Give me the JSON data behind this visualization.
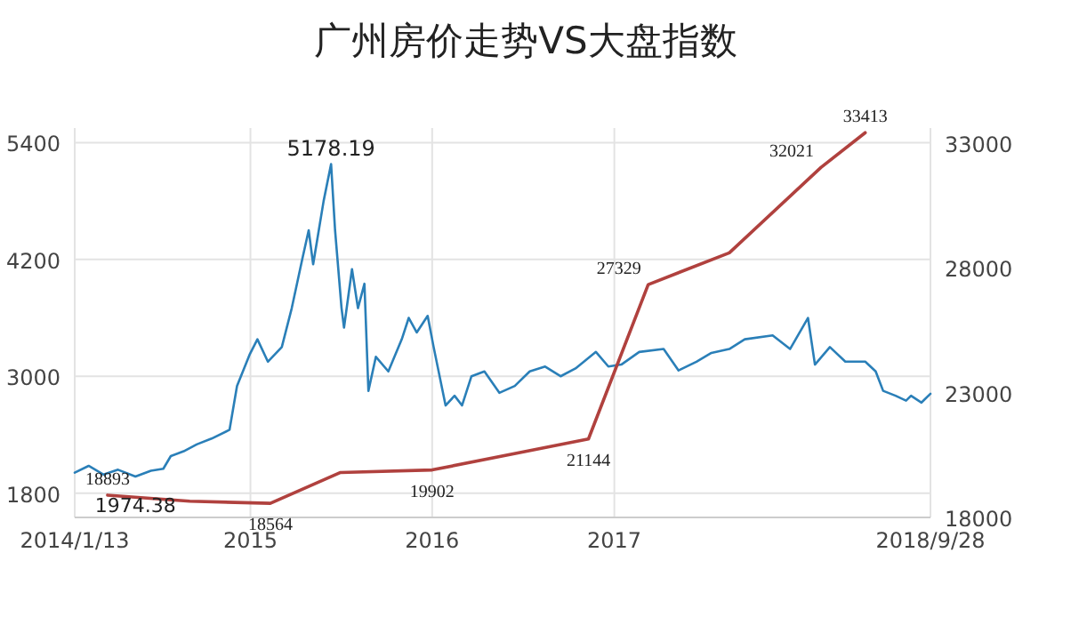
{
  "chart_data": {
    "type": "line",
    "title": "广州房价走势VS大盘指数",
    "xlim": [
      "2014-01-13",
      "2018-09-28"
    ],
    "xticks": [
      {
        "value": "2014-01-13",
        "label": "2014/1/13"
      },
      {
        "value": "2015-01-01",
        "label": "2015"
      },
      {
        "value": "2016-01-01",
        "label": "2016"
      },
      {
        "value": "2017-01-01",
        "label": "2017"
      },
      {
        "value": "2018-09-28",
        "label": "2018/9/28"
      }
    ],
    "ylim": [
      1550,
      5550
    ],
    "yticks": [
      1800,
      3000,
      4200,
      5400
    ],
    "y2lim": [
      18000,
      33600
    ],
    "y2ticks": [
      18000,
      23000,
      28000,
      33000
    ],
    "grid": true,
    "series": [
      {
        "color": "#2a7fb8",
        "x": [
          "2014-01-13",
          "2014-02-10",
          "2014-03-12",
          "2014-04-10",
          "2014-05-15",
          "2014-06-15",
          "2014-07-10",
          "2014-07-25",
          "2014-08-20",
          "2014-09-15",
          "2014-10-15",
          "2014-11-20",
          "2014-12-05",
          "2014-12-31",
          "2015-01-15",
          "2015-02-05",
          "2015-03-05",
          "2015-03-25",
          "2015-04-15",
          "2015-04-28",
          "2015-05-07",
          "2015-05-28",
          "2015-06-12",
          "2015-06-20",
          "2015-07-03",
          "2015-07-08",
          "2015-07-24",
          "2015-08-05",
          "2015-08-18",
          "2015-08-26",
          "2015-09-10",
          "2015-10-05",
          "2015-11-01",
          "2015-11-15",
          "2015-12-01",
          "2015-12-23",
          "2016-01-04",
          "2016-01-28",
          "2016-02-15",
          "2016-03-01",
          "2016-03-20",
          "2016-04-15",
          "2016-05-15",
          "2016-06-15",
          "2016-07-15",
          "2016-08-15",
          "2016-09-15",
          "2016-10-15",
          "2016-11-25",
          "2016-12-20",
          "2017-01-15",
          "2017-02-20",
          "2017-04-10",
          "2017-05-10",
          "2017-06-15",
          "2017-07-15",
          "2017-08-20",
          "2017-09-20",
          "2017-11-15",
          "2017-12-20",
          "2018-01-25",
          "2018-02-08",
          "2018-03-10",
          "2018-04-10",
          "2018-05-20",
          "2018-06-10",
          "2018-06-25",
          "2018-07-20",
          "2018-08-10",
          "2018-08-20",
          "2018-09-10",
          "2018-09-28"
        ],
        "values": [
          2010,
          2080,
          1990,
          2040,
          1970,
          2030,
          2050,
          2180,
          2230,
          2300,
          2360,
          2450,
          2900,
          3230,
          3380,
          3150,
          3300,
          3700,
          4200,
          4500,
          4150,
          4800,
          5180,
          4500,
          3700,
          3500,
          4100,
          3700,
          3950,
          2850,
          3200,
          3050,
          3380,
          3600,
          3450,
          3620,
          3300,
          2700,
          2800,
          2700,
          3000,
          3050,
          2830,
          2900,
          3050,
          3100,
          3000,
          3080,
          3250,
          3100,
          3120,
          3250,
          3280,
          3060,
          3150,
          3240,
          3280,
          3380,
          3420,
          3280,
          3600,
          3120,
          3300,
          3150,
          3150,
          3050,
          2850,
          2800,
          2750,
          2800,
          2730,
          2820
        ]
      },
      {
        "color": "#b0413e",
        "axis": "y2",
        "x": [
          "2014-03-20",
          "2014-09-01",
          "2015-02-10",
          "2015-07-01",
          "2016-01-01",
          "2016-11-10",
          "2017-03-10",
          "2017-08-20",
          "2018-02-20",
          "2018-05-20"
        ],
        "values": [
          18893,
          18650,
          18564,
          19800,
          19902,
          21144,
          27329,
          28600,
          32021,
          33413
        ],
        "value_labels": [
          "18893",
          null,
          "18564",
          null,
          "19902",
          "21144",
          "27329",
          null,
          "32021",
          "33413"
        ]
      }
    ],
    "annotations": [
      {
        "text": "5178.19",
        "x": "2015-06-12",
        "y": 5178.19
      },
      {
        "text": "1974.38",
        "x": "2014-05-15",
        "y": 1974.38
      }
    ]
  }
}
